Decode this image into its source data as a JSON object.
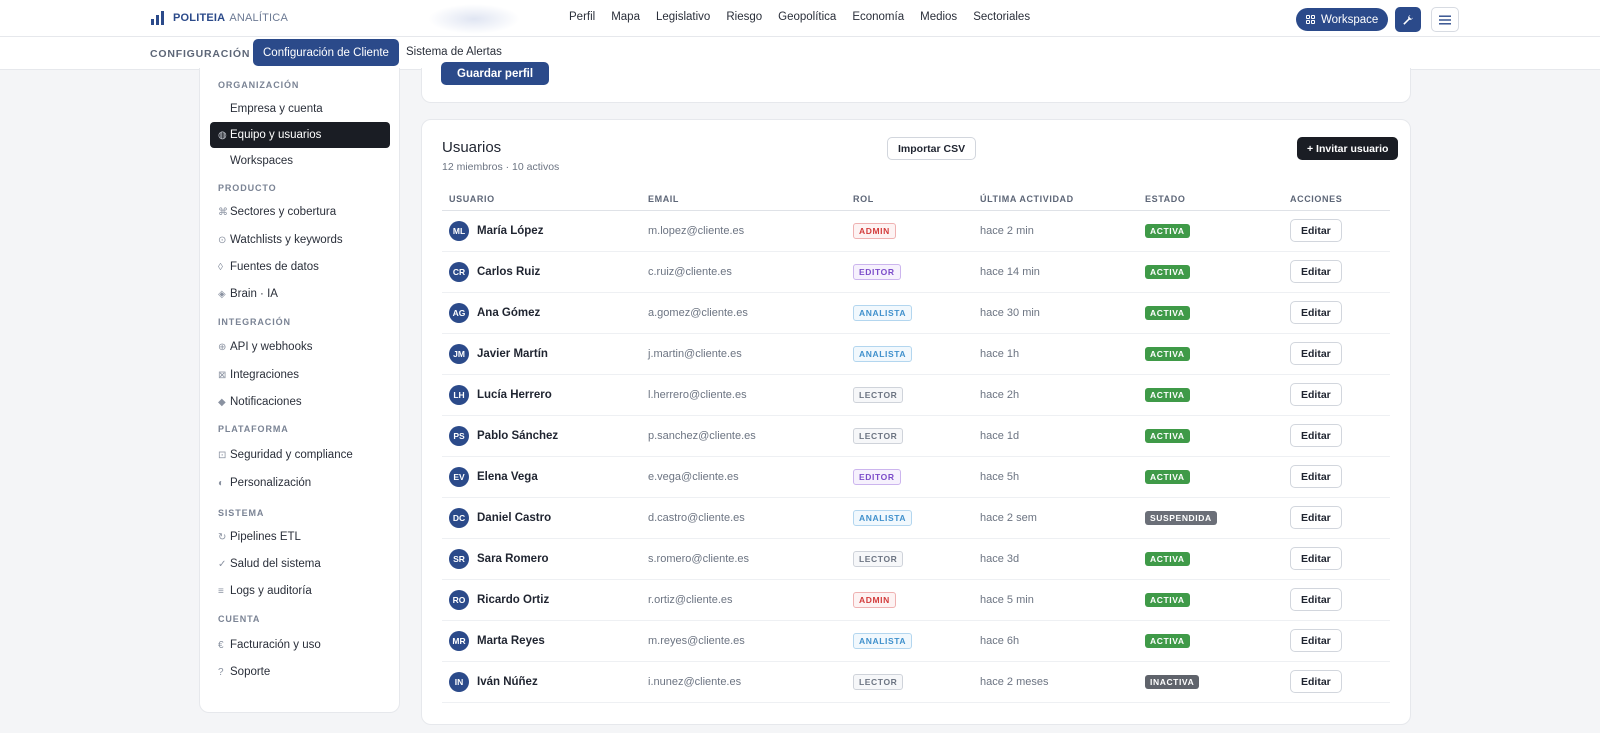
{
  "brand": {
    "name": "POLITEIA",
    "sub": "ANALÍTICA"
  },
  "topnav": [
    "Perfil",
    "Mapa",
    "Legislativo",
    "Riesgo",
    "Geopolítica",
    "Economía",
    "Medios",
    "Sectoriales"
  ],
  "header": {
    "workspace_label": "Workspace"
  },
  "subnav": {
    "section": "CONFIGURACIÓN",
    "active_tab": "Configuración de Cliente",
    "tab2": "Sistema de Alertas"
  },
  "sidebar": {
    "sections": [
      {
        "title": "ORGANIZACIÓN",
        "items": [
          {
            "icon": "",
            "label": "Empresa y cuenta"
          },
          {
            "icon": "◍",
            "label": "Equipo y usuarios",
            "active": true
          },
          {
            "icon": "",
            "label": "Workspaces"
          }
        ]
      },
      {
        "title": "PRODUCTO",
        "items": [
          {
            "icon": "⌘",
            "label": "Sectores y cobertura"
          },
          {
            "icon": "⊙",
            "label": "Watchlists y keywords"
          },
          {
            "icon": "◊",
            "label": "Fuentes de datos"
          },
          {
            "icon": "◈",
            "label": "Brain · IA"
          }
        ]
      },
      {
        "title": "INTEGRACIÓN",
        "items": [
          {
            "icon": "⊕",
            "label": "API y webhooks"
          },
          {
            "icon": "⊠",
            "label": "Integraciones"
          },
          {
            "icon": "◆",
            "label": "Notificaciones"
          }
        ]
      },
      {
        "title": "PLATAFORMA",
        "items": [
          {
            "icon": "⊡",
            "label": "Seguridad y compliance"
          },
          {
            "icon": "◐",
            "label": "Personalización"
          }
        ]
      },
      {
        "title": "SISTEMA",
        "items": [
          {
            "icon": "↻",
            "label": "Pipelines ETL"
          },
          {
            "icon": "✓",
            "label": "Salud del sistema"
          },
          {
            "icon": "≡",
            "label": "Logs y auditoría"
          }
        ]
      },
      {
        "title": "CUENTA",
        "items": [
          {
            "icon": "€",
            "label": "Facturación y uso"
          },
          {
            "icon": "?",
            "label": "Soporte"
          }
        ]
      }
    ]
  },
  "profile": {
    "save_label": "Guardar perfil"
  },
  "users": {
    "title": "Usuarios",
    "subtitle": "12 miembros · 10 activos",
    "import_label": "Importar CSV",
    "invite_label": "+ Invitar usuario",
    "columns": [
      "USUARIO",
      "EMAIL",
      "ROL",
      "ÚLTIMA ACTIVIDAD",
      "ESTADO",
      "ACCIONES"
    ],
    "edit_label": "Editar",
    "rows": [
      {
        "initials": "ML",
        "name": "María López",
        "email": "m.lopez@cliente.es",
        "role": "ADMIN",
        "activity": "hace 2 min",
        "status": "ACTIVA"
      },
      {
        "initials": "CR",
        "name": "Carlos Ruiz",
        "email": "c.ruiz@cliente.es",
        "role": "EDITOR",
        "activity": "hace 14 min",
        "status": "ACTIVA"
      },
      {
        "initials": "AG",
        "name": "Ana Gómez",
        "email": "a.gomez@cliente.es",
        "role": "ANALISTA",
        "activity": "hace 30 min",
        "status": "ACTIVA"
      },
      {
        "initials": "JM",
        "name": "Javier Martín",
        "email": "j.martin@cliente.es",
        "role": "ANALISTA",
        "activity": "hace 1h",
        "status": "ACTIVA"
      },
      {
        "initials": "LH",
        "name": "Lucía Herrero",
        "email": "l.herrero@cliente.es",
        "role": "LECTOR",
        "activity": "hace 2h",
        "status": "ACTIVA"
      },
      {
        "initials": "PS",
        "name": "Pablo Sánchez",
        "email": "p.sanchez@cliente.es",
        "role": "LECTOR",
        "activity": "hace 1d",
        "status": "ACTIVA"
      },
      {
        "initials": "EV",
        "name": "Elena Vega",
        "email": "e.vega@cliente.es",
        "role": "EDITOR",
        "activity": "hace 5h",
        "status": "ACTIVA"
      },
      {
        "initials": "DC",
        "name": "Daniel Castro",
        "email": "d.castro@cliente.es",
        "role": "ANALISTA",
        "activity": "hace 2 sem",
        "status": "SUSPENDIDA"
      },
      {
        "initials": "SR",
        "name": "Sara Romero",
        "email": "s.romero@cliente.es",
        "role": "LECTOR",
        "activity": "hace 3d",
        "status": "ACTIVA"
      },
      {
        "initials": "RO",
        "name": "Ricardo Ortiz",
        "email": "r.ortiz@cliente.es",
        "role": "ADMIN",
        "activity": "hace 5 min",
        "status": "ACTIVA"
      },
      {
        "initials": "MR",
        "name": "Marta Reyes",
        "email": "m.reyes@cliente.es",
        "role": "ANALISTA",
        "activity": "hace 6h",
        "status": "ACTIVA"
      },
      {
        "initials": "IN",
        "name": "Iván Núñez",
        "email": "i.nunez@cliente.es",
        "role": "LECTOR",
        "activity": "hace 2 meses",
        "status": "INACTIVA"
      }
    ]
  },
  "colors": {
    "accent": "#2b4a8a",
    "dark": "#1a1d24",
    "active_status": "#3f9a48"
  }
}
